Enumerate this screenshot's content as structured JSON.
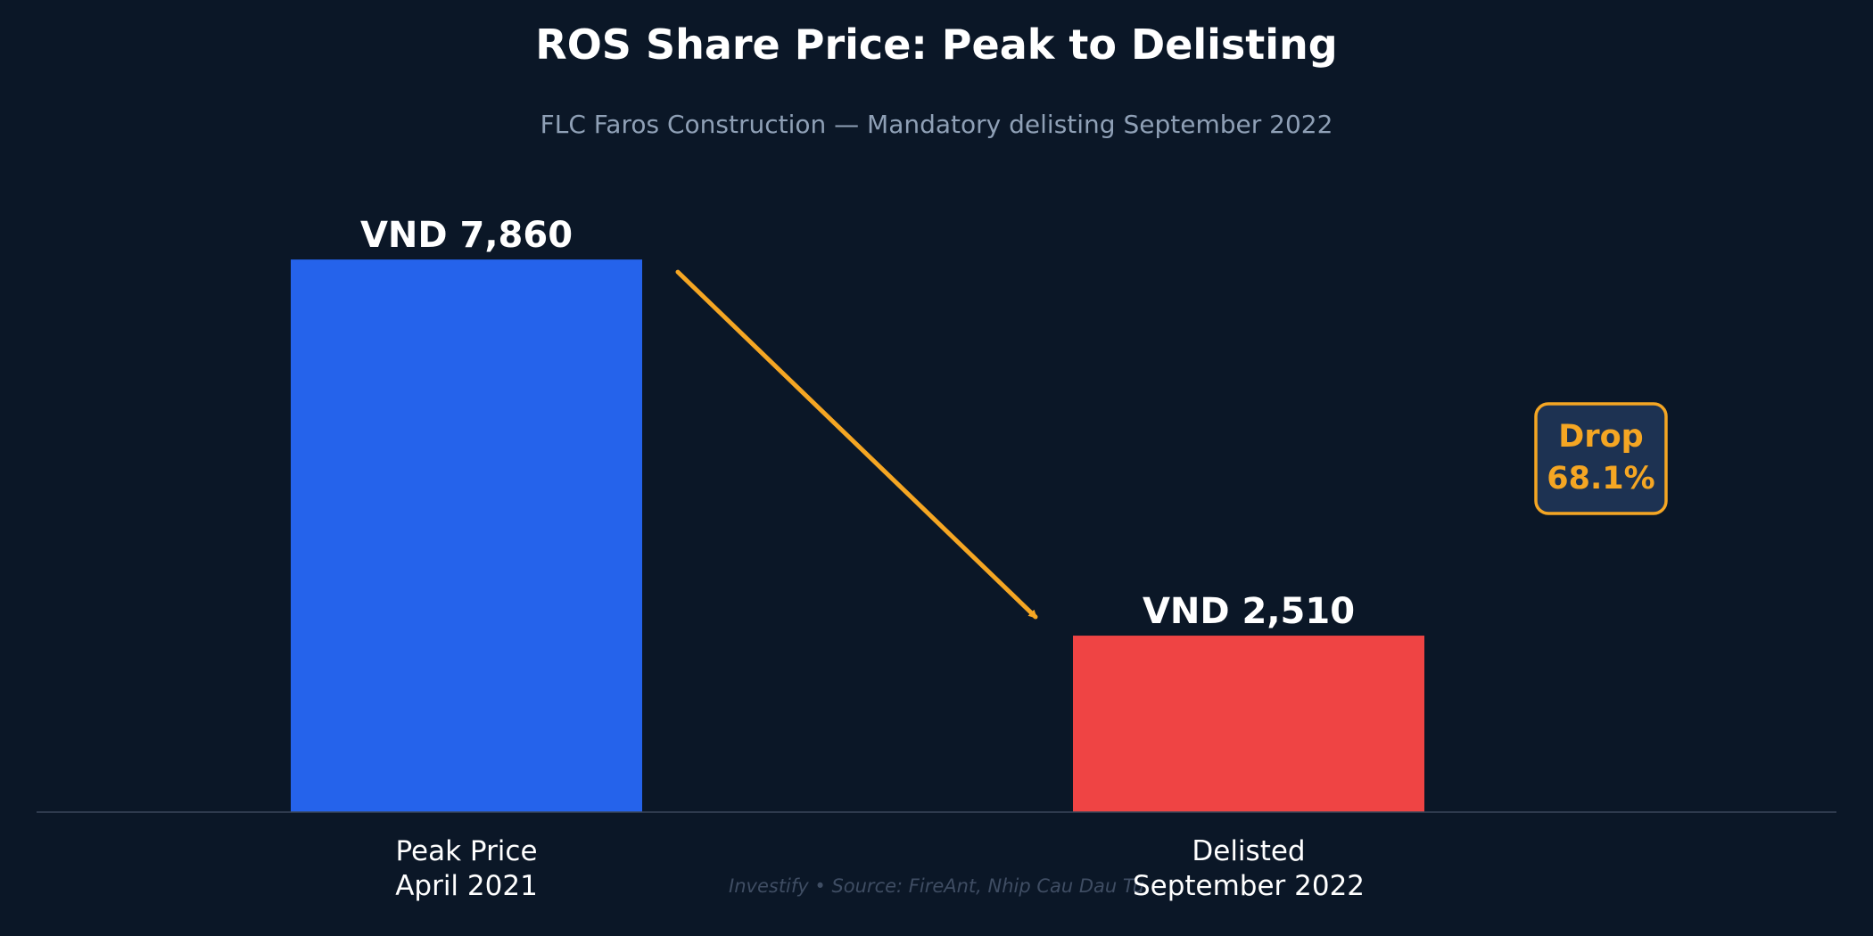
{
  "chart_data": {
    "type": "bar",
    "title": "ROS Share Price: Peak to Delisting",
    "subtitle": "FLC Faros Construction — Mandatory delisting September 2022",
    "categories": [
      [
        "Peak Price",
        "April 2021"
      ],
      [
        "Delisted",
        "September 2022"
      ]
    ],
    "values": [
      7860,
      2510
    ],
    "value_labels": [
      "VND 7,860",
      "VND 2,510"
    ],
    "colors": [
      "#2563eb",
      "#ef4444"
    ],
    "ylim": [
      0,
      8800
    ],
    "grid": false,
    "annotation": {
      "lines": [
        "Drop",
        "68.1%"
      ],
      "color": "#f5a623",
      "box_fill": "#1d3252",
      "arrow": "from top of first bar toward top of second bar"
    },
    "footer": "Investify  •  Source: FireAnt, Nhip Cau Dau Tu"
  },
  "colors": {
    "background": "#0b1727",
    "axis": "#3a475a",
    "title": "#ffffff",
    "subtitle": "#8fa0b6"
  }
}
